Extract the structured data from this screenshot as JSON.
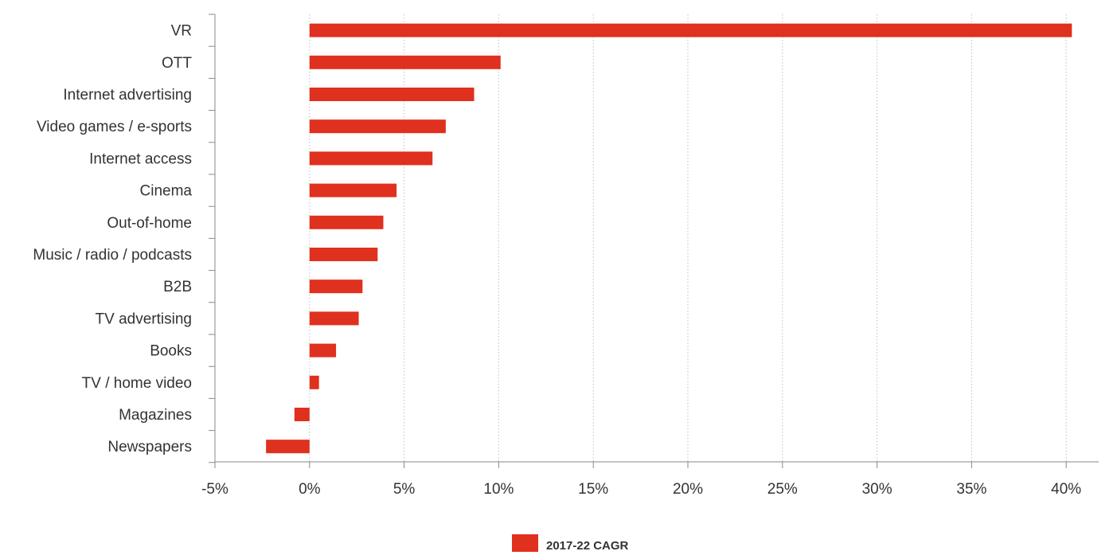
{
  "chart_data": {
    "type": "bar",
    "orientation": "horizontal",
    "categories": [
      "VR",
      "OTT",
      "Internet advertising",
      "Video games / e-sports",
      "Internet access",
      "Cinema",
      "Out-of-home",
      "Music / radio / podcasts",
      "B2B",
      "TV advertising",
      "Books",
      "TV / home video",
      "Magazines",
      "Newspapers"
    ],
    "series": [
      {
        "name": "2017-22 CAGR",
        "values": [
          40.3,
          10.1,
          8.7,
          7.2,
          6.5,
          4.6,
          3.9,
          3.6,
          2.8,
          2.6,
          1.4,
          0.5,
          -0.8,
          -2.3
        ]
      }
    ],
    "x_ticks": [
      "-5%",
      "0%",
      "5%",
      "10%",
      "15%",
      "20%",
      "25%",
      "30%",
      "35%",
      "40%"
    ],
    "xlim": [
      -5,
      42
    ],
    "unit": "%",
    "grid": "vertical dotted",
    "legend_position": "bottom-center",
    "colors": {
      "bar": "#e0301e",
      "grid": "#c9c9c9",
      "axis": "#888888",
      "text": "#333333"
    }
  }
}
